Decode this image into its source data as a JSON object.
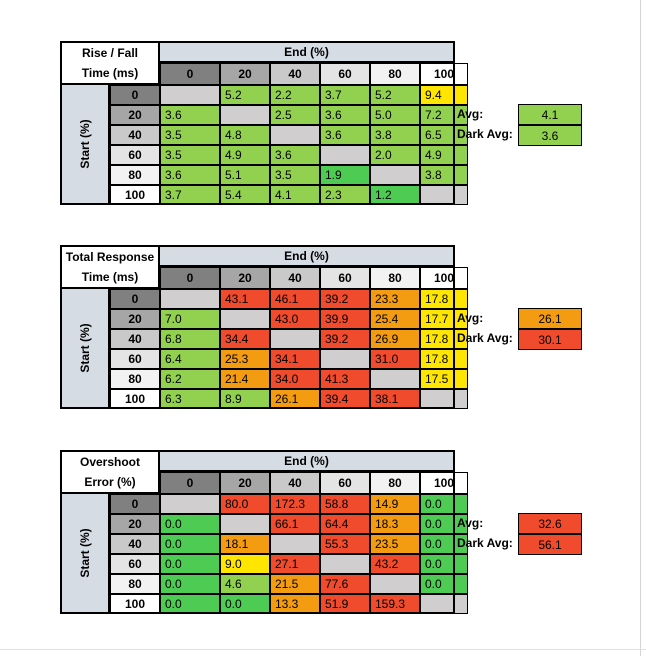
{
  "end_label": "End (%)",
  "start_label": "Start (%)",
  "headers": [
    "0",
    "20",
    "40",
    "60",
    "80",
    "100"
  ],
  "avg_label": "Avg:",
  "dark_avg_label": "Dark Avg:",
  "header_colors": [
    "#808080",
    "#a6a6a6",
    "#c9c9c9",
    "#e4e4e4",
    "#f2f2f2",
    "#ffffff"
  ],
  "colors": {
    "empty": "#d0cece",
    "light_green": "#92d050",
    "green": "#4ecb52",
    "yellow": "#ffe600",
    "orange": "#f39c12",
    "red": "#ef4b2c"
  },
  "tables": [
    {
      "title_line1": "Rise / Fall",
      "title_line2": "Time (ms)",
      "avg": "4.1",
      "dark_avg": "3.6",
      "avg_color": "light_green",
      "dark_avg_color": "light_green",
      "rows": [
        {
          "values": [
            "",
            "5.2",
            "2.2",
            "3.7",
            "5.2",
            "9.4"
          ],
          "colors": [
            "empty",
            "light_green",
            "light_green",
            "light_green",
            "light_green",
            "yellow"
          ]
        },
        {
          "values": [
            "3.6",
            "",
            "2.5",
            "3.6",
            "5.0",
            "7.2"
          ],
          "colors": [
            "light_green",
            "empty",
            "light_green",
            "light_green",
            "light_green",
            "light_green"
          ]
        },
        {
          "values": [
            "3.5",
            "4.8",
            "",
            "3.6",
            "3.8",
            "6.5"
          ],
          "colors": [
            "light_green",
            "light_green",
            "empty",
            "light_green",
            "light_green",
            "light_green"
          ]
        },
        {
          "values": [
            "3.5",
            "4.9",
            "3.6",
            "",
            "2.0",
            "4.9"
          ],
          "colors": [
            "light_green",
            "light_green",
            "light_green",
            "empty",
            "light_green",
            "light_green"
          ]
        },
        {
          "values": [
            "3.6",
            "5.1",
            "3.5",
            "1.9",
            "",
            "3.8"
          ],
          "colors": [
            "light_green",
            "light_green",
            "light_green",
            "green",
            "empty",
            "light_green"
          ]
        },
        {
          "values": [
            "3.7",
            "5.4",
            "4.1",
            "2.3",
            "1.2",
            ""
          ],
          "colors": [
            "light_green",
            "light_green",
            "light_green",
            "light_green",
            "green",
            "empty"
          ]
        }
      ]
    },
    {
      "title_line1": "Total Response",
      "title_line2": "Time (ms)",
      "avg": "26.1",
      "dark_avg": "30.1",
      "avg_color": "orange",
      "dark_avg_color": "red",
      "rows": [
        {
          "values": [
            "",
            "43.1",
            "46.1",
            "39.2",
            "23.3",
            "17.8"
          ],
          "colors": [
            "empty",
            "red",
            "red",
            "red",
            "orange",
            "yellow"
          ]
        },
        {
          "values": [
            "7.0",
            "",
            "43.0",
            "39.9",
            "25.4",
            "17.7"
          ],
          "colors": [
            "light_green",
            "empty",
            "red",
            "red",
            "orange",
            "yellow"
          ]
        },
        {
          "values": [
            "6.8",
            "34.4",
            "",
            "39.2",
            "26.9",
            "17.8"
          ],
          "colors": [
            "light_green",
            "red",
            "empty",
            "red",
            "orange",
            "yellow"
          ]
        },
        {
          "values": [
            "6.4",
            "25.3",
            "34.1",
            "",
            "31.0",
            "17.8"
          ],
          "colors": [
            "light_green",
            "orange",
            "red",
            "empty",
            "red",
            "yellow"
          ]
        },
        {
          "values": [
            "6.2",
            "21.4",
            "34.0",
            "41.3",
            "",
            "17.5"
          ],
          "colors": [
            "light_green",
            "orange",
            "red",
            "red",
            "empty",
            "yellow"
          ]
        },
        {
          "values": [
            "6.3",
            "8.9",
            "26.1",
            "39.4",
            "38.1",
            ""
          ],
          "colors": [
            "light_green",
            "light_green",
            "orange",
            "red",
            "red",
            "empty"
          ]
        }
      ]
    },
    {
      "title_line1": "Overshoot",
      "title_line2": "Error (%)",
      "avg": "32.6",
      "dark_avg": "56.1",
      "avg_color": "red",
      "dark_avg_color": "red",
      "rows": [
        {
          "values": [
            "",
            "80.0",
            "172.3",
            "58.8",
            "14.9",
            "0.0"
          ],
          "colors": [
            "empty",
            "red",
            "red",
            "red",
            "orange",
            "green"
          ]
        },
        {
          "values": [
            "0.0",
            "",
            "66.1",
            "64.4",
            "18.3",
            "0.0"
          ],
          "colors": [
            "green",
            "empty",
            "red",
            "red",
            "orange",
            "green"
          ]
        },
        {
          "values": [
            "0.0",
            "18.1",
            "",
            "55.3",
            "23.5",
            "0.0"
          ],
          "colors": [
            "green",
            "orange",
            "empty",
            "red",
            "orange",
            "green"
          ]
        },
        {
          "values": [
            "0.0",
            "9.0",
            "27.1",
            "",
            "43.2",
            "0.0"
          ],
          "colors": [
            "green",
            "yellow",
            "red",
            "empty",
            "red",
            "green"
          ]
        },
        {
          "values": [
            "0.0",
            "4.6",
            "21.5",
            "77.6",
            "",
            "0.0"
          ],
          "colors": [
            "green",
            "light_green",
            "orange",
            "red",
            "empty",
            "green"
          ]
        },
        {
          "values": [
            "0.0",
            "0.0",
            "13.3",
            "51.9",
            "159.3",
            ""
          ],
          "colors": [
            "green",
            "green",
            "orange",
            "red",
            "red",
            "empty"
          ]
        }
      ]
    }
  ]
}
